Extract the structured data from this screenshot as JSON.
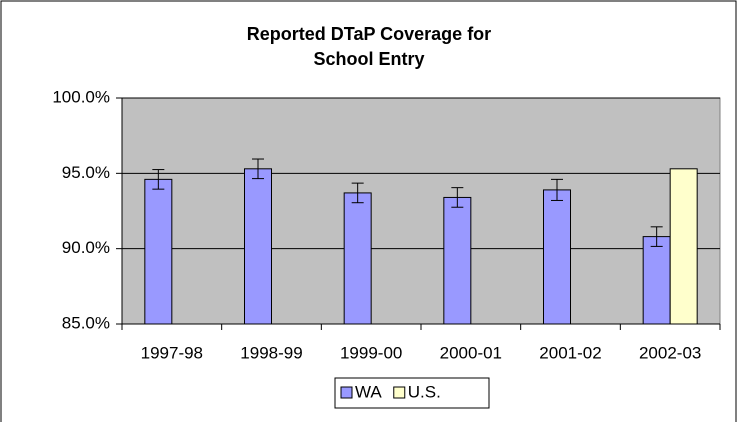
{
  "chart_data": {
    "type": "bar",
    "title": "Reported DTaP Coverage for School Entry",
    "categories": [
      "1997-98",
      "1998-99",
      "1999-00",
      "2000-01",
      "2001-02",
      "2002-03"
    ],
    "series": [
      {
        "name": "WA",
        "color": "#9999ff",
        "values": [
          94.6,
          95.3,
          93.7,
          93.4,
          93.9,
          90.8
        ],
        "errors": [
          0.65,
          0.65,
          0.65,
          0.65,
          0.7,
          0.65
        ]
      },
      {
        "name": "U.S.",
        "color": "#ffffcc",
        "values": [
          null,
          null,
          null,
          null,
          null,
          95.3
        ]
      }
    ],
    "ylim": [
      85,
      100
    ],
    "yticks": [
      {
        "value": 85,
        "label": "85.0%"
      },
      {
        "value": 90,
        "label": "90.0%"
      },
      {
        "value": 95,
        "label": "95.0%"
      },
      {
        "value": 100,
        "label": "100.0%"
      }
    ],
    "grid": true
  }
}
